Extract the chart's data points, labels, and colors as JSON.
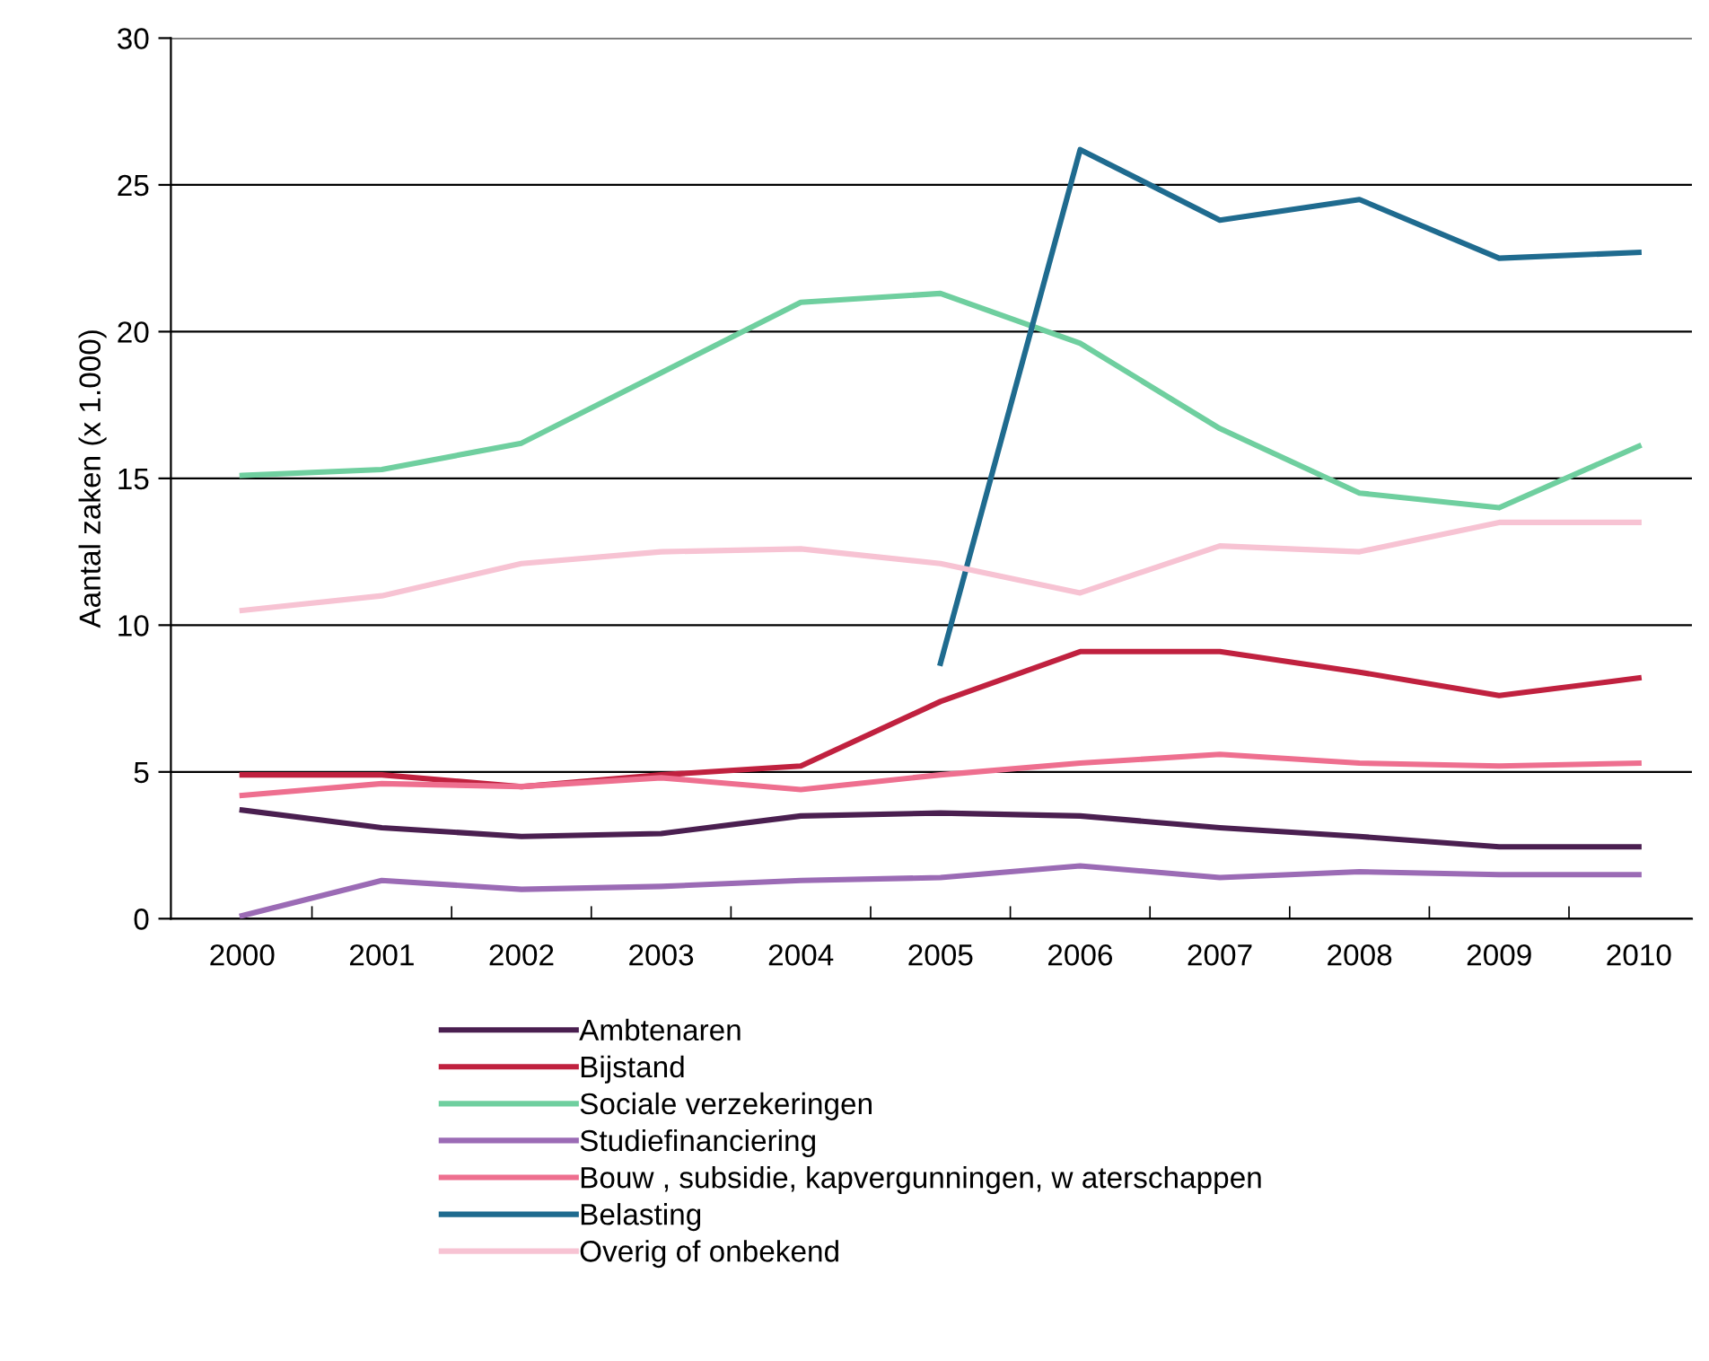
{
  "chart_data": {
    "type": "line",
    "ylabel": "Aantal zaken (x 1.000)",
    "categories": [
      "2000",
      "2001",
      "2002",
      "2003",
      "2004",
      "2005",
      "2006",
      "2007",
      "2008",
      "2009",
      "2010"
    ],
    "series": [
      {
        "name": "Ambtenaren",
        "color": "#4a1f50",
        "values": [
          3.7,
          3.1,
          2.8,
          2.9,
          3.5,
          3.6,
          3.5,
          3.1,
          2.8,
          2.45,
          2.45
        ]
      },
      {
        "name": "Bijstand",
        "color": "#c0213f",
        "values": [
          4.9,
          4.9,
          4.5,
          4.9,
          5.2,
          7.4,
          9.1,
          9.1,
          8.4,
          7.6,
          8.2
        ]
      },
      {
        "name": "Sociale verzekeringen",
        "color": "#6fcf9f",
        "values": [
          15.1,
          15.3,
          16.2,
          18.6,
          21.0,
          21.3,
          19.6,
          16.7,
          14.5,
          14.0,
          16.1
        ]
      },
      {
        "name": "Studiefinanciering",
        "color": "#9b6bb5",
        "values": [
          0.1,
          1.3,
          1.0,
          1.1,
          1.3,
          1.4,
          1.8,
          1.4,
          1.6,
          1.5,
          1.5
        ]
      },
      {
        "name": "Bouw , subsidie, kapvergunningen, w aterschappen",
        "color": "#ee6f8f",
        "values": [
          4.2,
          4.6,
          4.5,
          4.8,
          4.4,
          4.9,
          5.3,
          5.6,
          5.3,
          5.2,
          5.3
        ]
      },
      {
        "name": "Belasting",
        "color": "#1f6b8f",
        "values": [
          null,
          null,
          null,
          null,
          null,
          8.7,
          26.2,
          23.8,
          24.5,
          22.5,
          22.7
        ]
      },
      {
        "name": "Overig of onbekend",
        "color": "#f7c3d3",
        "values": [
          10.5,
          11.0,
          12.1,
          12.5,
          12.6,
          12.1,
          11.1,
          12.7,
          12.5,
          13.5,
          13.5
        ]
      }
    ],
    "ylim": [
      0,
      30
    ],
    "yticks": [
      0,
      5,
      10,
      15,
      20,
      25,
      30
    ],
    "grid": "y",
    "legend": "bottom",
    "marker": "none",
    "line_style": "solid"
  }
}
